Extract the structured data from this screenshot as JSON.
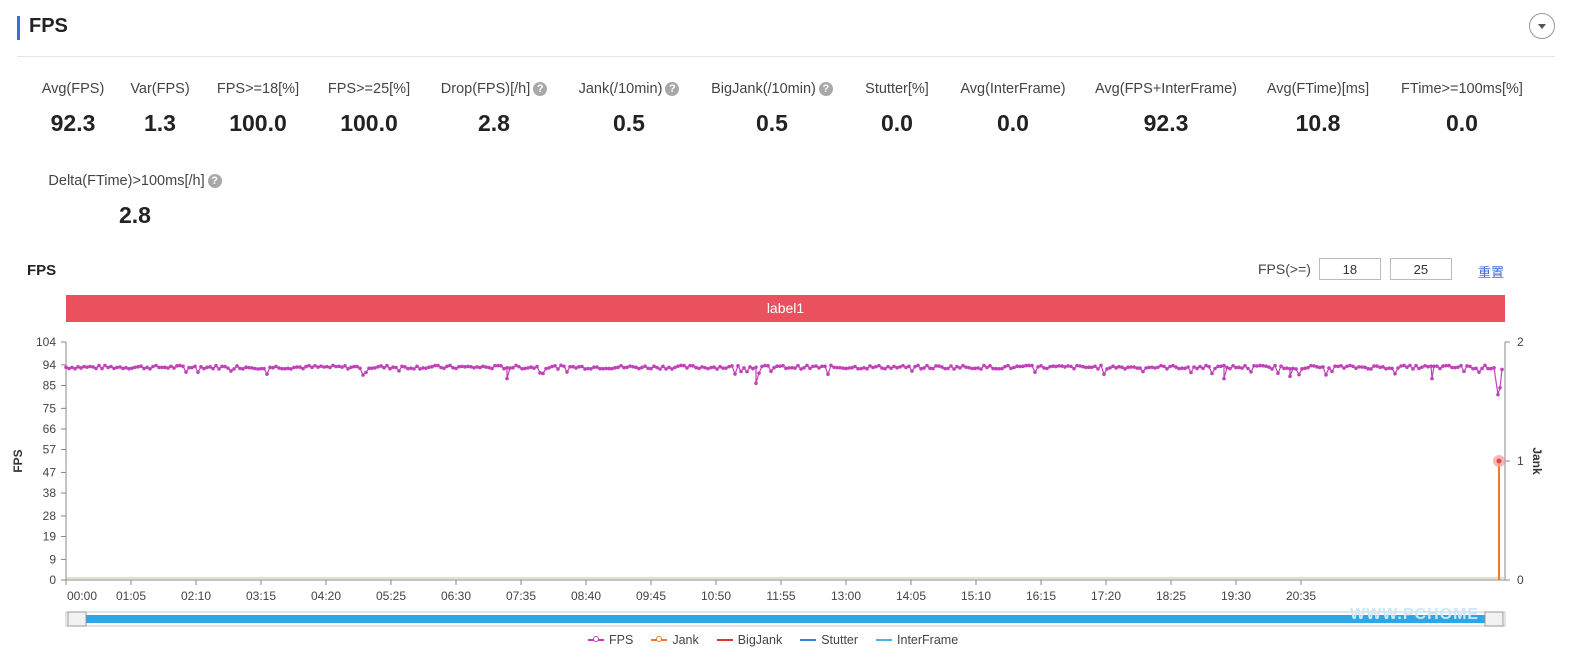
{
  "header": {
    "title": "FPS"
  },
  "metrics": [
    {
      "label": "Avg(FPS)",
      "value": "92.3",
      "help": false
    },
    {
      "label": "Var(FPS)",
      "value": "1.3",
      "help": false
    },
    {
      "label": "FPS>=18[%]",
      "value": "100.0",
      "help": false
    },
    {
      "label": "FPS>=25[%]",
      "value": "100.0",
      "help": false
    },
    {
      "label": "Drop(FPS)[/h]",
      "value": "2.8",
      "help": true
    },
    {
      "label": "Jank(/10min)",
      "value": "0.5",
      "help": true
    },
    {
      "label": "BigJank(/10min)",
      "value": "0.5",
      "help": true
    },
    {
      "label": "Stutter[%]",
      "value": "0.0",
      "help": false
    },
    {
      "label": "Avg(InterFrame)",
      "value": "0.0",
      "help": false
    },
    {
      "label": "Avg(FPS+InterFrame)",
      "value": "92.3",
      "help": false
    },
    {
      "label": "Avg(FTime)[ms]",
      "value": "10.8",
      "help": false
    },
    {
      "label": "FTime>=100ms[%]",
      "value": "0.0",
      "help": false
    },
    {
      "label": "Delta(FTime)>100ms[/h]",
      "value": "2.8",
      "help": true
    }
  ],
  "chart_section": {
    "title": "FPS",
    "threshold_label": "FPS(>=)",
    "threshold_1": "18",
    "threshold_2": "25",
    "reset_label": "重置",
    "banner_label": "label1",
    "help_glyph": "?"
  },
  "chart_data": {
    "type": "line",
    "ylabel": "FPS",
    "y2label": "Jank",
    "y_ticks": [
      0,
      9,
      19,
      28,
      38,
      47,
      57,
      66,
      75,
      85,
      94,
      104
    ],
    "ylim": [
      0,
      104
    ],
    "y2_ticks": [
      0,
      1,
      2
    ],
    "y2lim": [
      0,
      2
    ],
    "x_ticks": [
      "00:00",
      "01:05",
      "02:10",
      "03:15",
      "04:20",
      "05:25",
      "06:30",
      "07:35",
      "08:40",
      "09:45",
      "10:50",
      "11:55",
      "13:00",
      "14:05",
      "15:10",
      "16:15",
      "17:20",
      "18:25",
      "19:30",
      "20:35"
    ],
    "xlim_minutes": [
      0,
      1439
    ],
    "series": [
      {
        "name": "FPS",
        "color": "#c041b8",
        "baseline": 93,
        "dips": [
          {
            "x": 441,
            "y": 88
          },
          {
            "x": 690,
            "y": 86
          },
          {
            "x": 1158,
            "y": 88
          },
          {
            "x": 1224,
            "y": 89
          },
          {
            "x": 1366,
            "y": 88
          },
          {
            "x": 1432,
            "y": 81
          },
          {
            "x": 1434,
            "y": 84
          }
        ]
      },
      {
        "name": "Jank",
        "color": "#f07a2c",
        "points": [
          {
            "x": 1433,
            "y": 1
          }
        ]
      },
      {
        "name": "BigJank",
        "color": "#d83a2f",
        "values": []
      },
      {
        "name": "Stutter",
        "color": "#3b7fe0",
        "values": []
      },
      {
        "name": "InterFrame",
        "color": "#4db6e8",
        "values": []
      }
    ],
    "legend": "bottom",
    "grid": false
  },
  "watermark": "WWW.PCHOME"
}
